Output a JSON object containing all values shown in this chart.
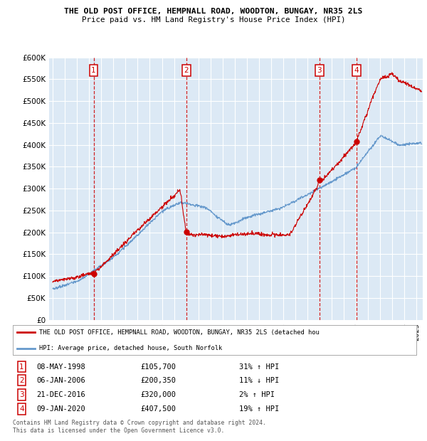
{
  "title1": "THE OLD POST OFFICE, HEMPNALL ROAD, WOODTON, BUNGAY, NR35 2LS",
  "title2": "Price paid vs. HM Land Registry's House Price Index (HPI)",
  "ylim": [
    0,
    600000
  ],
  "yticks": [
    0,
    50000,
    100000,
    150000,
    200000,
    250000,
    300000,
    350000,
    400000,
    450000,
    500000,
    550000,
    600000
  ],
  "xlim_start": 1994.7,
  "xlim_end": 2025.5,
  "sales": [
    {
      "num": 1,
      "date_str": "08-MAY-1998",
      "price": 105700,
      "year": 1998.37,
      "pct": "31%",
      "dir": "↑"
    },
    {
      "num": 2,
      "date_str": "06-JAN-2006",
      "price": 200350,
      "year": 2006.02,
      "pct": "11%",
      "dir": "↓"
    },
    {
      "num": 3,
      "date_str": "21-DEC-2016",
      "price": 320000,
      "year": 2016.97,
      "pct": "2%",
      "dir": "↑"
    },
    {
      "num": 4,
      "date_str": "09-JAN-2020",
      "price": 407500,
      "year": 2020.03,
      "pct": "19%",
      "dir": "↑"
    }
  ],
  "legend_label_red": "THE OLD POST OFFICE, HEMPNALL ROAD, WOODTON, BUNGAY, NR35 2LS (detached hou",
  "legend_label_blue": "HPI: Average price, detached house, South Norfolk",
  "footer": "Contains HM Land Registry data © Crown copyright and database right 2024.\nThis data is licensed under the Open Government Licence v3.0.",
  "red_color": "#cc0000",
  "blue_color": "#6699cc",
  "bg_color": "#dce9f5",
  "grid_color": "#ffffff"
}
